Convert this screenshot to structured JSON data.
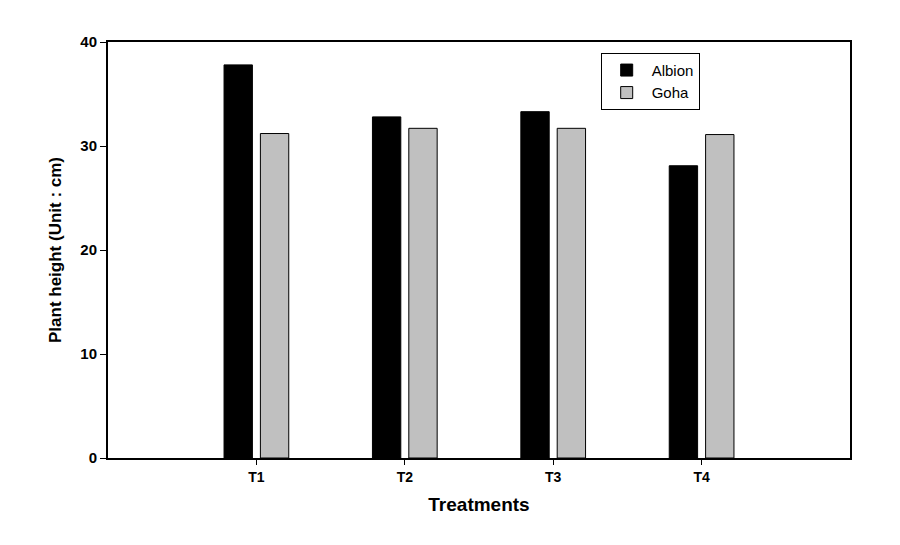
{
  "chart_data": {
    "type": "bar",
    "x_label": "Treatments",
    "y_label": "Plant height (Unit : cm)",
    "categories": [
      "T1",
      "T2",
      "T3",
      "T4"
    ],
    "series": [
      {
        "name": "Albion",
        "color": "#000000",
        "values": [
          37.8,
          32.8,
          33.3,
          28.1
        ]
      },
      {
        "name": "Goha",
        "color": "#c0c0c0",
        "values": [
          31.2,
          31.7,
          31.7,
          31.1
        ]
      }
    ],
    "ylim": [
      0,
      40
    ],
    "yticks": [
      0,
      10,
      20,
      30,
      40
    ],
    "grid": false,
    "legend": "upper right"
  }
}
